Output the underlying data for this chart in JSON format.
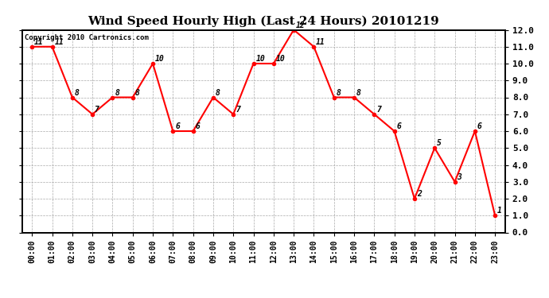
{
  "title": "Wind Speed Hourly High (Last 24 Hours) 20101219",
  "copyright": "Copyright 2010 Cartronics.com",
  "hours": [
    "00:00",
    "01:00",
    "02:00",
    "03:00",
    "04:00",
    "05:00",
    "06:00",
    "07:00",
    "08:00",
    "09:00",
    "10:00",
    "11:00",
    "12:00",
    "13:00",
    "14:00",
    "15:00",
    "16:00",
    "17:00",
    "18:00",
    "19:00",
    "20:00",
    "21:00",
    "22:00",
    "23:00"
  ],
  "values": [
    11,
    11,
    8,
    7,
    8,
    8,
    10,
    6,
    6,
    8,
    7,
    10,
    10,
    12,
    11,
    8,
    8,
    7,
    6,
    2,
    5,
    3,
    6,
    1
  ],
  "line_color": "#ff0000",
  "marker_color": "#ff0000",
  "bg_color": "#ffffff",
  "grid_color": "#aaaaaa",
  "ylim": [
    0.0,
    12.0
  ],
  "yticks": [
    0.0,
    1.0,
    2.0,
    3.0,
    4.0,
    5.0,
    6.0,
    7.0,
    8.0,
    9.0,
    10.0,
    11.0,
    12.0
  ],
  "title_fontsize": 11,
  "label_fontsize": 7,
  "annotation_fontsize": 7
}
